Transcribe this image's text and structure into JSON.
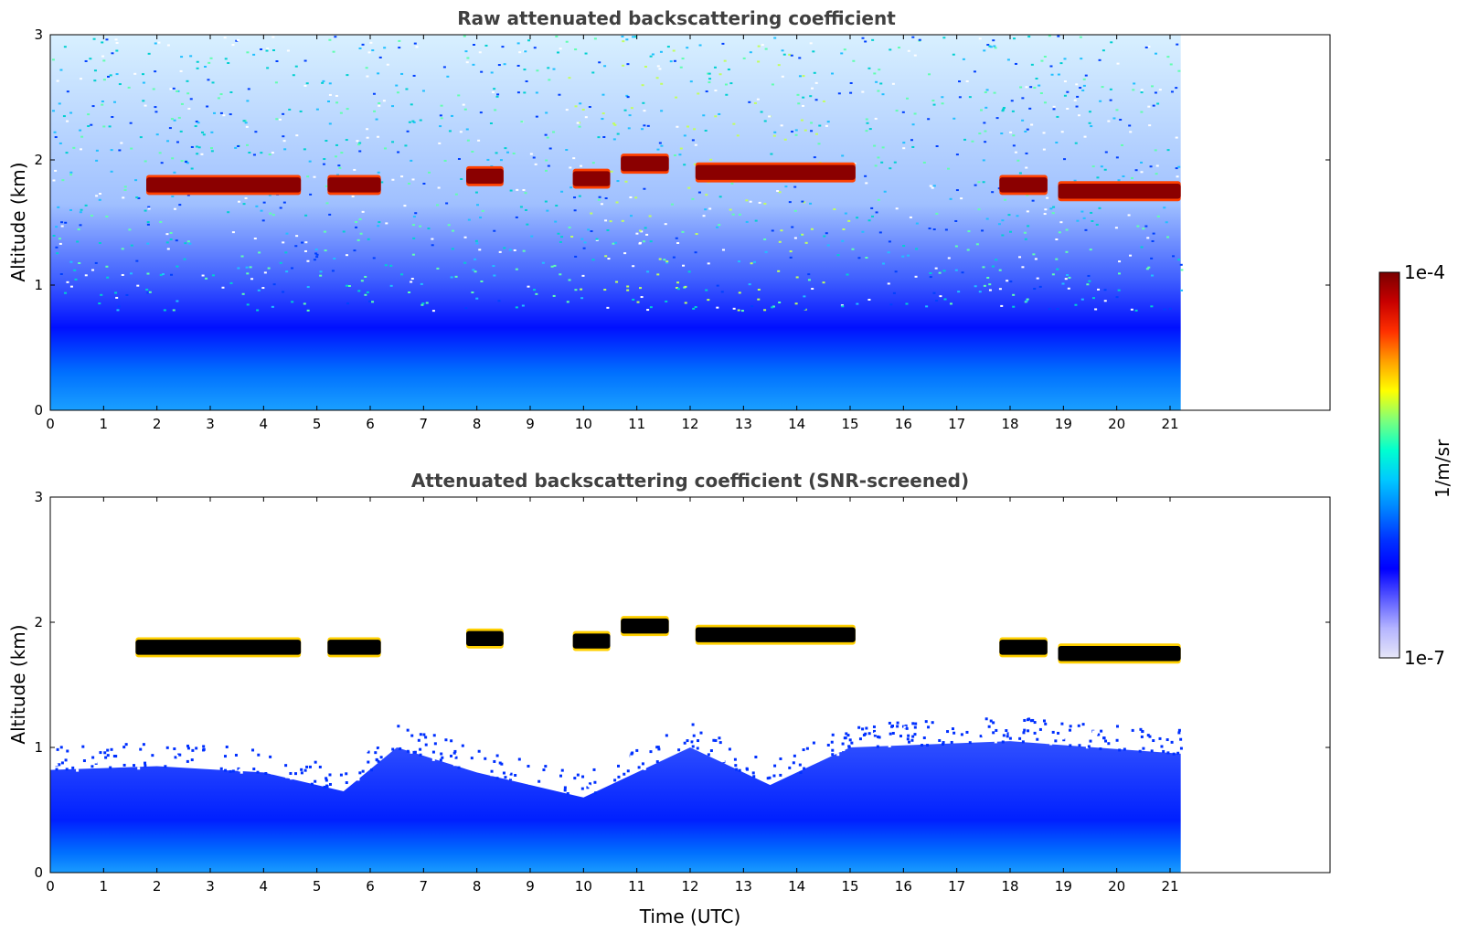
{
  "chart_data": [
    {
      "type": "heatmap",
      "title": "Raw attenuated backscattering coefficient",
      "xlabel": "",
      "ylabel": "Altitude (km)",
      "xlim": [
        0,
        24
      ],
      "ylim": [
        0,
        3
      ],
      "x_ticks": [
        "0",
        "1",
        "2",
        "3",
        "4",
        "5",
        "6",
        "7",
        "8",
        "9",
        "10",
        "11",
        "12",
        "13",
        "14",
        "15",
        "16",
        "17",
        "18",
        "19",
        "20",
        "21"
      ],
      "y_ticks": [
        "0",
        "1",
        "2",
        "3"
      ],
      "data_end_time": 21.2,
      "cloud_layer_segments": [
        {
          "start": 1.8,
          "end": 4.7,
          "altitude_km": 1.8
        },
        {
          "start": 5.2,
          "end": 6.2,
          "altitude_km": 1.8
        },
        {
          "start": 7.8,
          "end": 8.5,
          "altitude_km": 1.87
        },
        {
          "start": 9.8,
          "end": 10.5,
          "altitude_km": 1.85
        },
        {
          "start": 10.7,
          "end": 11.6,
          "altitude_km": 1.97
        },
        {
          "start": 12.1,
          "end": 15.1,
          "altitude_km": 1.9
        },
        {
          "start": 17.8,
          "end": 18.7,
          "altitude_km": 1.8
        },
        {
          "start": 18.9,
          "end": 21.2,
          "altitude_km": 1.75
        }
      ],
      "boundary_layer_top_km": 0.6,
      "screened": false
    },
    {
      "type": "heatmap",
      "title": "Attenuated backscattering coefficient (SNR-screened)",
      "xlabel": "Time (UTC)",
      "ylabel": "Altitude (km)",
      "xlim": [
        0,
        24
      ],
      "ylim": [
        0,
        3
      ],
      "x_ticks": [
        "0",
        "1",
        "2",
        "3",
        "4",
        "5",
        "6",
        "7",
        "8",
        "9",
        "10",
        "11",
        "12",
        "13",
        "14",
        "15",
        "16",
        "17",
        "18",
        "19",
        "20",
        "21"
      ],
      "y_ticks": [
        "0",
        "1",
        "2",
        "3"
      ],
      "data_end_time": 21.2,
      "cloud_layer_segments": [
        {
          "start": 1.6,
          "end": 4.7,
          "altitude_km": 1.8
        },
        {
          "start": 5.2,
          "end": 6.2,
          "altitude_km": 1.8
        },
        {
          "start": 7.8,
          "end": 8.5,
          "altitude_km": 1.87
        },
        {
          "start": 9.8,
          "end": 10.5,
          "altitude_km": 1.85
        },
        {
          "start": 10.7,
          "end": 11.6,
          "altitude_km": 1.97
        },
        {
          "start": 12.1,
          "end": 15.1,
          "altitude_km": 1.9
        },
        {
          "start": 17.8,
          "end": 18.7,
          "altitude_km": 1.8
        },
        {
          "start": 18.9,
          "end": 21.2,
          "altitude_km": 1.75
        }
      ],
      "boundary_layer_top_profile": [
        {
          "t": 0,
          "km": 0.82
        },
        {
          "t": 2,
          "km": 0.85
        },
        {
          "t": 4,
          "km": 0.8
        },
        {
          "t": 5.5,
          "km": 0.65
        },
        {
          "t": 6.5,
          "km": 1.0
        },
        {
          "t": 8,
          "km": 0.8
        },
        {
          "t": 10,
          "km": 0.6
        },
        {
          "t": 12,
          "km": 1.0
        },
        {
          "t": 13.5,
          "km": 0.7
        },
        {
          "t": 15,
          "km": 1.0
        },
        {
          "t": 18,
          "km": 1.05
        },
        {
          "t": 21.2,
          "km": 0.95
        }
      ],
      "screened": true
    }
  ],
  "colorbar": {
    "label": "1/m/sr",
    "max_label": "1e-4",
    "min_label": "1e-7",
    "colormap": [
      "#e6e6f8",
      "#b4b4ff",
      "#5a5aff",
      "#0000ff",
      "#0033ff",
      "#0080ff",
      "#00c8ff",
      "#00ffd0",
      "#7cff7c",
      "#ffff00",
      "#ffa000",
      "#ff3000",
      "#c80000",
      "#7a0000"
    ]
  }
}
